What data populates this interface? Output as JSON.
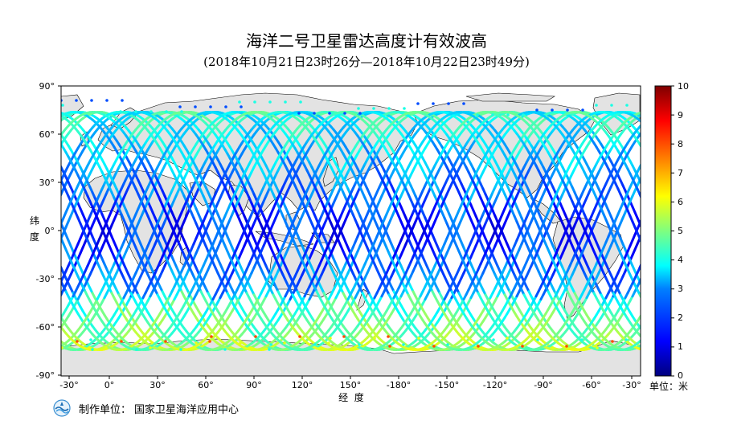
{
  "title": "海洋二号卫星雷达高度计有效波高",
  "subtitle": "(2018年10月21日23时26分—2018年10月22日23时49分)",
  "map": {
    "lat_ticks": [
      "90°",
      "60°",
      "30°",
      "0°",
      "-30°",
      "-60°",
      "-90°"
    ],
    "lon_ticks": [
      "-30°",
      "0°",
      "30°",
      "60°",
      "90°",
      "120°",
      "150°",
      "-180°",
      "-150°",
      "-120°",
      "-90°",
      "-60°",
      "-30°"
    ],
    "ylabel_chars": [
      "纬",
      "度"
    ],
    "xlabel": "经  度",
    "central_longitude": 150
  },
  "colorbar": {
    "min": 0,
    "max": 10,
    "ticks": [
      "10",
      "9",
      "8",
      "7",
      "6",
      "5",
      "4",
      "3",
      "2",
      "1",
      "0"
    ],
    "unit_label": "单位：米",
    "colors": [
      "#00007f",
      "#0000ff",
      "#007fff",
      "#00ffff",
      "#7fff7f",
      "#ffff00",
      "#ff7f00",
      "#ff0000",
      "#7f0000"
    ]
  },
  "footer": {
    "label": "制作单位：",
    "org": "国家卫星海洋应用中心",
    "logo_icon": "nsoas-logo-icon"
  }
}
